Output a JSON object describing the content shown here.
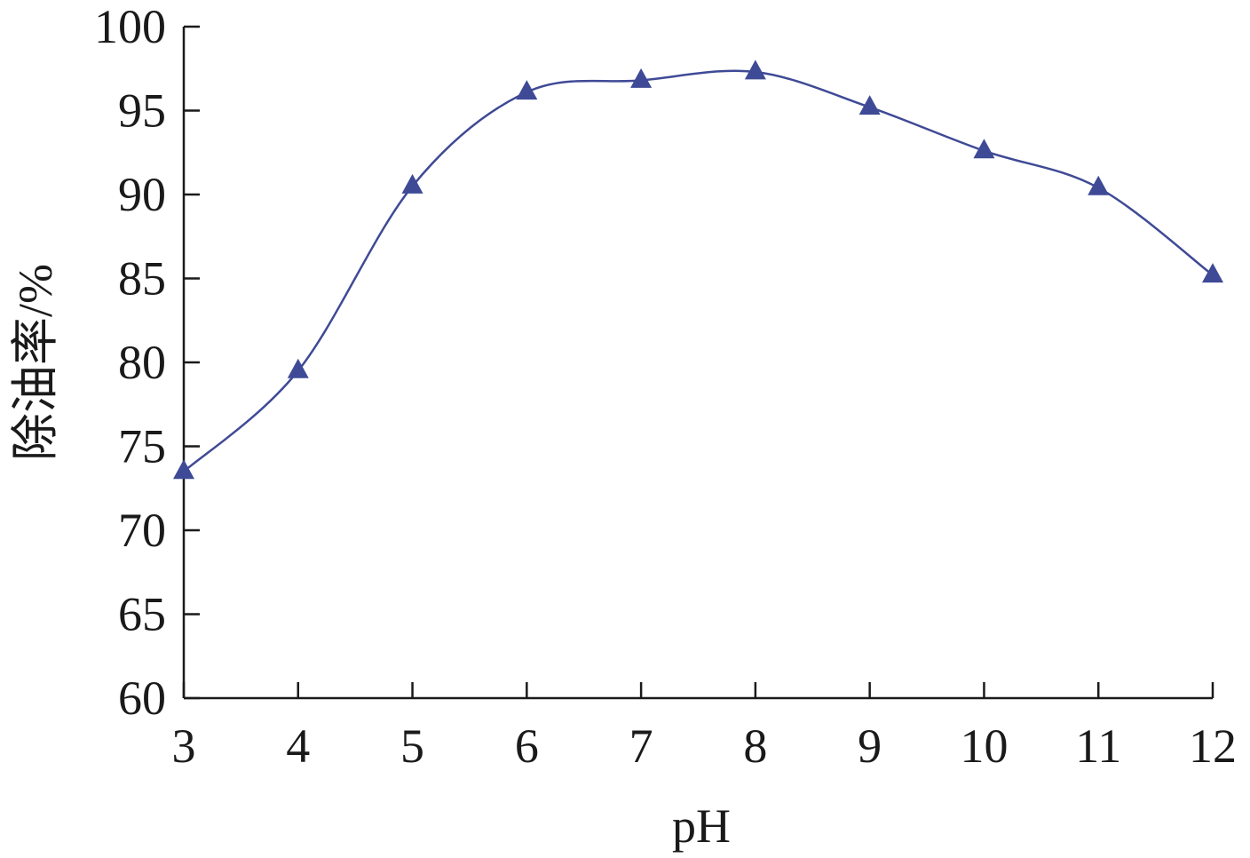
{
  "chart_data": {
    "type": "line",
    "xlabel": "pH",
    "ylabel": "除油率/%",
    "x": [
      3,
      4,
      5,
      6,
      7,
      8,
      9,
      10,
      11,
      12
    ],
    "series": [
      {
        "values": [
          73.5,
          79.5,
          90.5,
          96.1,
          96.8,
          97.3,
          95.2,
          92.6,
          90.4,
          85.2
        ]
      }
    ],
    "xlim": [
      3,
      12
    ],
    "ylim": [
      60,
      100
    ],
    "xticks": [
      "3",
      "4",
      "5",
      "6",
      "7",
      "8",
      "9",
      "10",
      "11",
      "12"
    ],
    "yticks": [
      "60",
      "65",
      "70",
      "75",
      "80",
      "85",
      "90",
      "95",
      "100"
    ],
    "grid": false,
    "marker": "triangle",
    "line_style": "smooth",
    "colors": {
      "series": "#3f4a96",
      "axis": "#1a1a1a"
    }
  }
}
